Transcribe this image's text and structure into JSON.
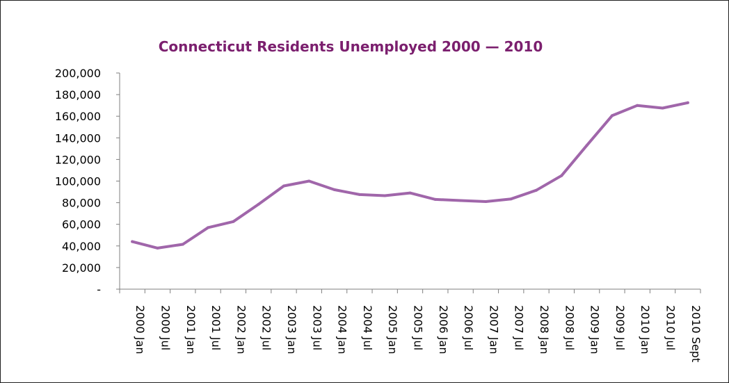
{
  "chart_data": {
    "type": "line",
    "title": "Connecticut Residents Unemployed 2000 — 2010",
    "xlabel": "",
    "ylabel": "",
    "categories": [
      "2000 Jan",
      "2000 Jul",
      "2001 Jan",
      "2001 Jul",
      "2002 Jan",
      "2002 Jul",
      "2003 Jan",
      "2003 Jul",
      "2004 Jan",
      "2004 Jul",
      "2005 Jan",
      "2005 Jul",
      "2006 Jan",
      "2006 Jul",
      "2007 Jan",
      "2007 Jul",
      "2008 Jan",
      "2008 Jul",
      "2009 Jan",
      "2009 Jul",
      "2010 Jan",
      "2010 Jul",
      "2010 Sept"
    ],
    "series": [
      {
        "values": [
          44000,
          38000,
          41500,
          57000,
          62500,
          78500,
          95500,
          100000,
          92000,
          87500,
          86500,
          89000,
          83000,
          82000,
          81000,
          83500,
          91500,
          105000,
          133000,
          160500,
          170000,
          167500,
          172500
        ],
        "color": "#a066aa"
      }
    ],
    "ylim": [
      0,
      200000
    ],
    "yticks": [
      0,
      20000,
      40000,
      60000,
      80000,
      100000,
      120000,
      140000,
      160000,
      180000,
      200000
    ],
    "ytick_labels": [
      "-",
      "20,000",
      "40,000",
      "60,000",
      "80,000",
      "100,000",
      "120,000",
      "140,000",
      "160,000",
      "180,000",
      "200,000"
    ],
    "grid": false,
    "legend": "none",
    "title_color": "#7b1f6e"
  }
}
